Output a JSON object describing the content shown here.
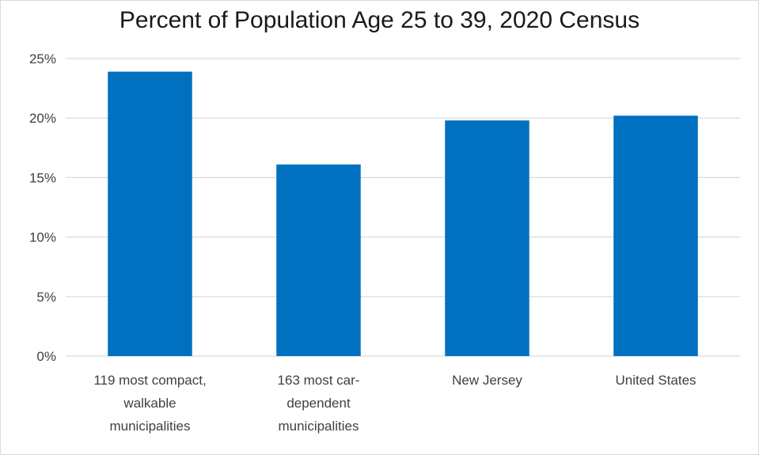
{
  "chart_data": {
    "type": "bar",
    "title": "Percent of Population Age 25 to 39, 2020 Census",
    "xlabel": "",
    "ylabel": "",
    "categories": [
      [
        "119 most compact,",
        "walkable",
        "municipalities"
      ],
      [
        "163 most car-",
        "dependent",
        "municipalities"
      ],
      [
        "New Jersey"
      ],
      [
        "United States"
      ]
    ],
    "values": [
      23.9,
      16.1,
      19.8,
      20.2
    ],
    "ylim": [
      0,
      25
    ],
    "yticks": [
      0,
      5,
      10,
      15,
      20,
      25
    ],
    "ytick_labels": [
      "0%",
      "5%",
      "10%",
      "15%",
      "20%",
      "25%"
    ],
    "grid": true,
    "legend": "none",
    "bar_color": "#0070c0",
    "grid_color": "#d9d9d9"
  }
}
